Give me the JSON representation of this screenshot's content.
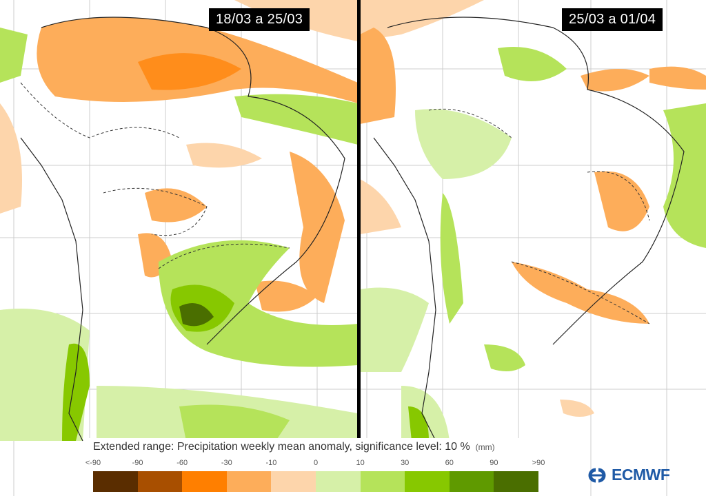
{
  "panels": [
    {
      "title": "18/03 a 25/03"
    },
    {
      "title": "25/03 a 01/04"
    }
  ],
  "legend": {
    "title": "Extended range: Precipitation weekly mean anomaly, significance level: 10 %",
    "unit": "(mm)",
    "ticks": [
      "<-90",
      "-90",
      "-60",
      "-30",
      "-10",
      "0",
      "10",
      "30",
      "60",
      "90",
      ">90"
    ],
    "colors": [
      "#5a2d00",
      "#a84f00",
      "#ff7f00",
      "#fdad5a",
      "#fdd5ab",
      "#d6f0a8",
      "#b5e35a",
      "#87c800",
      "#5f9a00",
      "#4a6e00"
    ]
  },
  "logo": {
    "text": "ECMWF",
    "color": "#1f5aa6"
  }
}
